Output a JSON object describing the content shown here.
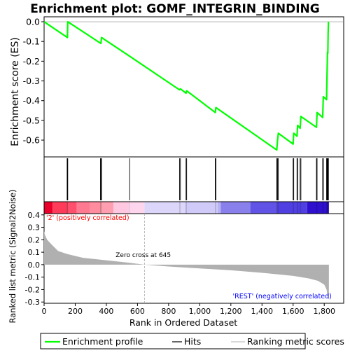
{
  "chart_data": {
    "type": "line",
    "title": "Enrichment plot: GOMF_INTEGRIN_BINDING",
    "es_panel": {
      "ylabel": "Enrichment score (ES)",
      "yticks": [
        0.0,
        -0.1,
        -0.2,
        -0.3,
        -0.4,
        -0.5,
        -0.6
      ],
      "ytick_labels": [
        "0.0",
        "-0.1",
        "-0.2",
        "-0.3",
        "-0.4",
        "-0.5",
        "-0.6"
      ],
      "ylim": [
        -0.685,
        0.025
      ],
      "line_color": "#00ff00",
      "x": [
        0,
        150,
        152,
        365,
        369,
        550,
        870,
        876,
        912,
        916,
        1100,
        1104,
        1495,
        1500,
        1505,
        1600,
        1604,
        1625,
        1629,
        1645,
        1650,
        1750,
        1754,
        1790,
        1794,
        1815,
        1818,
        1821,
        1823,
        1825,
        1827
      ],
      "y": [
        0.0,
        -0.08,
        0.0,
        -0.11,
        -0.08,
        -0.175,
        -0.345,
        -0.34,
        -0.362,
        -0.35,
        -0.46,
        -0.435,
        -0.65,
        -0.6,
        -0.565,
        -0.62,
        -0.565,
        -0.58,
        -0.525,
        -0.54,
        -0.48,
        -0.535,
        -0.46,
        -0.485,
        -0.38,
        -0.395,
        -0.265,
        -0.155,
        -0.16,
        -0.06,
        0.0
      ]
    },
    "hits": [
      148,
      150,
      152,
      362,
      365,
      369,
      550,
      870,
      876,
      912,
      916,
      1100,
      1104,
      1495,
      1497,
      1500,
      1505,
      1600,
      1604,
      1625,
      1629,
      1645,
      1650,
      1750,
      1754,
      1790,
      1794,
      1815,
      1818,
      1821,
      1823,
      1825,
      1827
    ],
    "ranked_panel": {
      "ylabel": "Ranked list metric (Signal2Noise)",
      "yticks": [
        0.4,
        0.3,
        0.2,
        0.1,
        0.0,
        -0.1,
        -0.2,
        -0.3
      ],
      "ytick_labels": [
        "0.4",
        "0.3",
        "0.2",
        "0.1",
        "0.0",
        "-0.1",
        "-0.2",
        "-0.3"
      ],
      "ylim": [
        -0.31,
        0.41
      ],
      "metric_x": [
        0,
        5,
        20,
        50,
        90,
        150,
        250,
        400,
        550,
        645,
        800,
        1000,
        1200,
        1400,
        1600,
        1700,
        1760,
        1800,
        1815,
        1825,
        1830
      ],
      "metric_y": [
        0.27,
        0.24,
        0.2,
        0.16,
        0.11,
        0.085,
        0.055,
        0.035,
        0.015,
        0.0,
        -0.015,
        -0.03,
        -0.045,
        -0.065,
        -0.09,
        -0.11,
        -0.13,
        -0.16,
        -0.2,
        -0.27,
        -0.28
      ],
      "fill_color": "#b0b0b0",
      "zero_cross_label": "Zero cross at 645",
      "zero_cross_x": 645,
      "pos_label": "'2' (positively correlated)",
      "neg_label": "'REST' (negatively correlated)",
      "pos_color": "#ff0000",
      "neg_color": "#0000ff"
    },
    "heat_segments": [
      {
        "from": 0,
        "to": 55,
        "color": "#e8002a"
      },
      {
        "from": 55,
        "to": 150,
        "color": "#ff3b5a"
      },
      {
        "from": 150,
        "to": 210,
        "color": "#ff4f6c"
      },
      {
        "from": 210,
        "to": 295,
        "color": "#ff7a90"
      },
      {
        "from": 295,
        "to": 365,
        "color": "#ff8d9f"
      },
      {
        "from": 365,
        "to": 445,
        "color": "#ff9eb0"
      },
      {
        "from": 445,
        "to": 545,
        "color": "#ffc7e0"
      },
      {
        "from": 545,
        "to": 645,
        "color": "#fdd6ee"
      },
      {
        "from": 645,
        "to": 905,
        "color": "#dcd7fa"
      },
      {
        "from": 905,
        "to": 1115,
        "color": "#d0caf8"
      },
      {
        "from": 1115,
        "to": 1135,
        "color": "#b8b1f3"
      },
      {
        "from": 1135,
        "to": 1325,
        "color": "#8a80ec"
      },
      {
        "from": 1325,
        "to": 1500,
        "color": "#6153e6"
      },
      {
        "from": 1500,
        "to": 1690,
        "color": "#5040e2"
      },
      {
        "from": 1690,
        "to": 1830,
        "color": "#2f10cf"
      }
    ],
    "xaxis": {
      "label": "Rank in Ordered Dataset",
      "ticks": [
        0,
        200,
        400,
        600,
        800,
        1000,
        1200,
        1400,
        1600,
        1800
      ],
      "tick_labels": [
        "0",
        "200",
        "400",
        "600",
        "800",
        "1,000",
        "1,200",
        "1,400",
        "1,600",
        "1,800"
      ],
      "xlim": [
        0,
        1925
      ]
    },
    "legend": {
      "position": "bottom",
      "items": [
        {
          "label": "Enrichment profile",
          "color": "#00ff00"
        },
        {
          "label": "Hits",
          "color": "#000000"
        },
        {
          "label": "Ranking metric scores",
          "color": "#c0c0c0"
        }
      ]
    }
  }
}
